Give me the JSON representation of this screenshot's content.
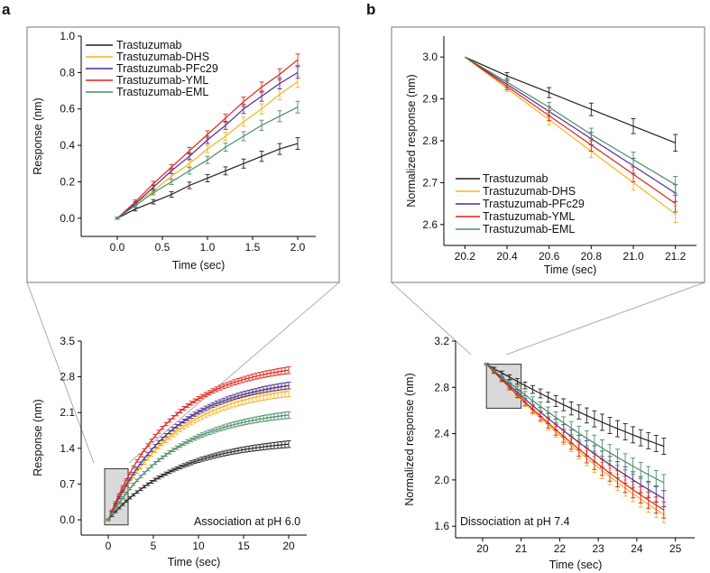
{
  "panel_labels": [
    "a",
    "b"
  ],
  "colors": {
    "Trastuzumab": "#231f20",
    "Trastuzumab-DHS": "#f5b21e",
    "Trastuzumab-PFc29": "#4a2f94",
    "Trastuzumab-YML": "#e2231a",
    "Trastuzumab-EML": "#4a8c69"
  },
  "chart_data": [
    {
      "id": "a_inset",
      "type": "line",
      "title": "",
      "xlabel": "Time (sec)",
      "ylabel": "Response (nm)",
      "xlim": [
        -0.4,
        2.2
      ],
      "ylim": [
        -0.1,
        1.0
      ],
      "xticks": [
        0.0,
        0.5,
        1.0,
        1.5,
        2.0
      ],
      "xtick_labels": [
        "0.0",
        "0.5",
        "1.0",
        "1.5",
        "2.0"
      ],
      "yticks": [
        0.0,
        0.2,
        0.4,
        0.6,
        0.8,
        1.0
      ],
      "ytick_labels": [
        "0.0",
        "0.2",
        "0.4",
        "0.6",
        "0.8",
        "1.0"
      ],
      "legend": "top-left",
      "x": [
        0.0,
        0.2,
        0.4,
        0.6,
        0.8,
        1.0,
        1.2,
        1.4,
        1.6,
        1.8,
        2.0
      ],
      "series": [
        {
          "name": "Trastuzumab",
          "values": [
            0.0,
            0.05,
            0.09,
            0.13,
            0.18,
            0.22,
            0.26,
            0.3,
            0.34,
            0.38,
            0.41
          ],
          "err": [
            0.005,
            0.01,
            0.012,
            0.015,
            0.018,
            0.02,
            0.022,
            0.025,
            0.028,
            0.03,
            0.032
          ]
        },
        {
          "name": "Trastuzumab-DHS",
          "values": [
            0.0,
            0.08,
            0.15,
            0.23,
            0.3,
            0.38,
            0.45,
            0.53,
            0.6,
            0.68,
            0.75
          ],
          "err": [
            0.005,
            0.01,
            0.012,
            0.015,
            0.018,
            0.02,
            0.022,
            0.025,
            0.028,
            0.03,
            0.032
          ]
        },
        {
          "name": "Trastuzumab-PFc29",
          "values": [
            0.0,
            0.08,
            0.17,
            0.26,
            0.34,
            0.43,
            0.51,
            0.6,
            0.67,
            0.74,
            0.8
          ],
          "err": [
            0.005,
            0.01,
            0.012,
            0.015,
            0.018,
            0.02,
            0.022,
            0.025,
            0.028,
            0.03,
            0.032
          ]
        },
        {
          "name": "Trastuzumab-YML",
          "values": [
            0.0,
            0.09,
            0.19,
            0.28,
            0.37,
            0.46,
            0.55,
            0.64,
            0.72,
            0.79,
            0.87
          ],
          "err": [
            0.005,
            0.01,
            0.012,
            0.015,
            0.018,
            0.02,
            0.022,
            0.025,
            0.028,
            0.03,
            0.032
          ]
        },
        {
          "name": "Trastuzumab-EML",
          "values": [
            0.0,
            0.07,
            0.14,
            0.2,
            0.26,
            0.32,
            0.39,
            0.45,
            0.51,
            0.56,
            0.61
          ],
          "err": [
            0.005,
            0.01,
            0.012,
            0.015,
            0.018,
            0.02,
            0.022,
            0.025,
            0.028,
            0.03,
            0.032
          ]
        }
      ]
    },
    {
      "id": "a_main",
      "type": "line",
      "title": "",
      "xlabel": "Time (sec)",
      "ylabel": "Response (nm)",
      "annotation": "Association at pH 6.0",
      "xlim": [
        -3,
        22
      ],
      "ylim": [
        -0.3,
        3.5
      ],
      "xticks": [
        0,
        5,
        10,
        15,
        20
      ],
      "xtick_labels": [
        "0",
        "5",
        "10",
        "15",
        "20"
      ],
      "yticks": [
        0.0,
        0.7,
        1.4,
        2.1,
        2.8,
        3.5
      ],
      "ytick_labels": [
        "0.0",
        "0.7",
        "1.4",
        "2.1",
        "2.8",
        "3.5"
      ],
      "series": [
        {
          "name": "Trastuzumab",
          "plateau": 1.6,
          "rate": 0.13,
          "err": 0.05
        },
        {
          "name": "Trastuzumab-DHS",
          "plateau": 2.7,
          "rate": 0.135,
          "err": 0.08
        },
        {
          "name": "Trastuzumab-PFc29",
          "plateau": 2.8,
          "rate": 0.14,
          "err": 0.05
        },
        {
          "name": "Trastuzumab-YML",
          "plateau": 3.1,
          "rate": 0.145,
          "err": 0.05
        },
        {
          "name": "Trastuzumab-EML",
          "plateau": 2.2,
          "rate": 0.135,
          "err": 0.05
        }
      ],
      "zoom_box": {
        "x": [
          -0.4,
          2.2
        ],
        "y": [
          -0.1,
          1.0
        ]
      }
    },
    {
      "id": "b_inset",
      "type": "line",
      "title": "",
      "xlabel": "Time (sec)",
      "ylabel": "Normalized response (nm)",
      "xlim": [
        20.1,
        21.3
      ],
      "ylim": [
        2.55,
        3.05
      ],
      "xticks": [
        20.2,
        20.4,
        20.6,
        20.8,
        21.0,
        21.2
      ],
      "xtick_labels": [
        "20.2",
        "20.4",
        "20.6",
        "20.8",
        "21.0",
        "21.2"
      ],
      "yticks": [
        2.6,
        2.7,
        2.8,
        2.9,
        3.0
      ],
      "ytick_labels": [
        "2.6",
        "2.7",
        "2.8",
        "2.9",
        "3.0"
      ],
      "legend": "bottom-left",
      "x": [
        20.2,
        20.4,
        20.6,
        20.8,
        21.0,
        21.2
      ],
      "series": [
        {
          "name": "Trastuzumab",
          "values": [
            3.0,
            2.955,
            2.915,
            2.875,
            2.835,
            2.795
          ],
          "err": [
            0.0,
            0.008,
            0.012,
            0.015,
            0.018,
            0.02
          ]
        },
        {
          "name": "Trastuzumab-DHS",
          "values": [
            3.0,
            2.925,
            2.85,
            2.775,
            2.7,
            2.625
          ],
          "err": [
            0.0,
            0.008,
            0.012,
            0.015,
            0.018,
            0.02
          ]
        },
        {
          "name": "Trastuzumab-PFc29",
          "values": [
            3.0,
            2.935,
            2.87,
            2.805,
            2.74,
            2.675
          ],
          "err": [
            0.0,
            0.008,
            0.012,
            0.015,
            0.018,
            0.02
          ]
        },
        {
          "name": "Trastuzumab-YML",
          "values": [
            3.0,
            2.93,
            2.86,
            2.79,
            2.72,
            2.65
          ],
          "err": [
            0.0,
            0.008,
            0.012,
            0.015,
            0.018,
            0.02
          ]
        },
        {
          "name": "Trastuzumab-EML",
          "values": [
            3.0,
            2.94,
            2.88,
            2.815,
            2.755,
            2.695
          ],
          "err": [
            0.0,
            0.008,
            0.012,
            0.015,
            0.018,
            0.02
          ]
        }
      ]
    },
    {
      "id": "b_main",
      "type": "line",
      "title": "",
      "xlabel": "Time (sec)",
      "ylabel": "Normalized response (nm)",
      "annotation": "Dissociation at pH 7.4",
      "xlim": [
        19.3,
        25.5
      ],
      "ylim": [
        1.5,
        3.2
      ],
      "xticks": [
        20,
        21,
        22,
        23,
        24,
        25
      ],
      "xtick_labels": [
        "20",
        "21",
        "22",
        "23",
        "24",
        "25"
      ],
      "yticks": [
        1.6,
        2.0,
        2.4,
        2.8,
        3.2
      ],
      "ytick_labels": [
        "1.6",
        "2.0",
        "2.4",
        "2.8",
        "3.2"
      ],
      "series": [
        {
          "name": "Trastuzumab",
          "end": 2.28,
          "err": 0.07
        },
        {
          "name": "Trastuzumab-DHS",
          "end": 1.68,
          "err": 0.07
        },
        {
          "name": "Trastuzumab-PFc29",
          "end": 1.82,
          "err": 0.07
        },
        {
          "name": "Trastuzumab-YML",
          "end": 1.72,
          "err": 0.07
        },
        {
          "name": "Trastuzumab-EML",
          "end": 1.96,
          "err": 0.07
        }
      ],
      "zoom_box": {
        "x": [
          20.1,
          21.0
        ],
        "y": [
          2.62,
          3.0
        ]
      }
    }
  ]
}
